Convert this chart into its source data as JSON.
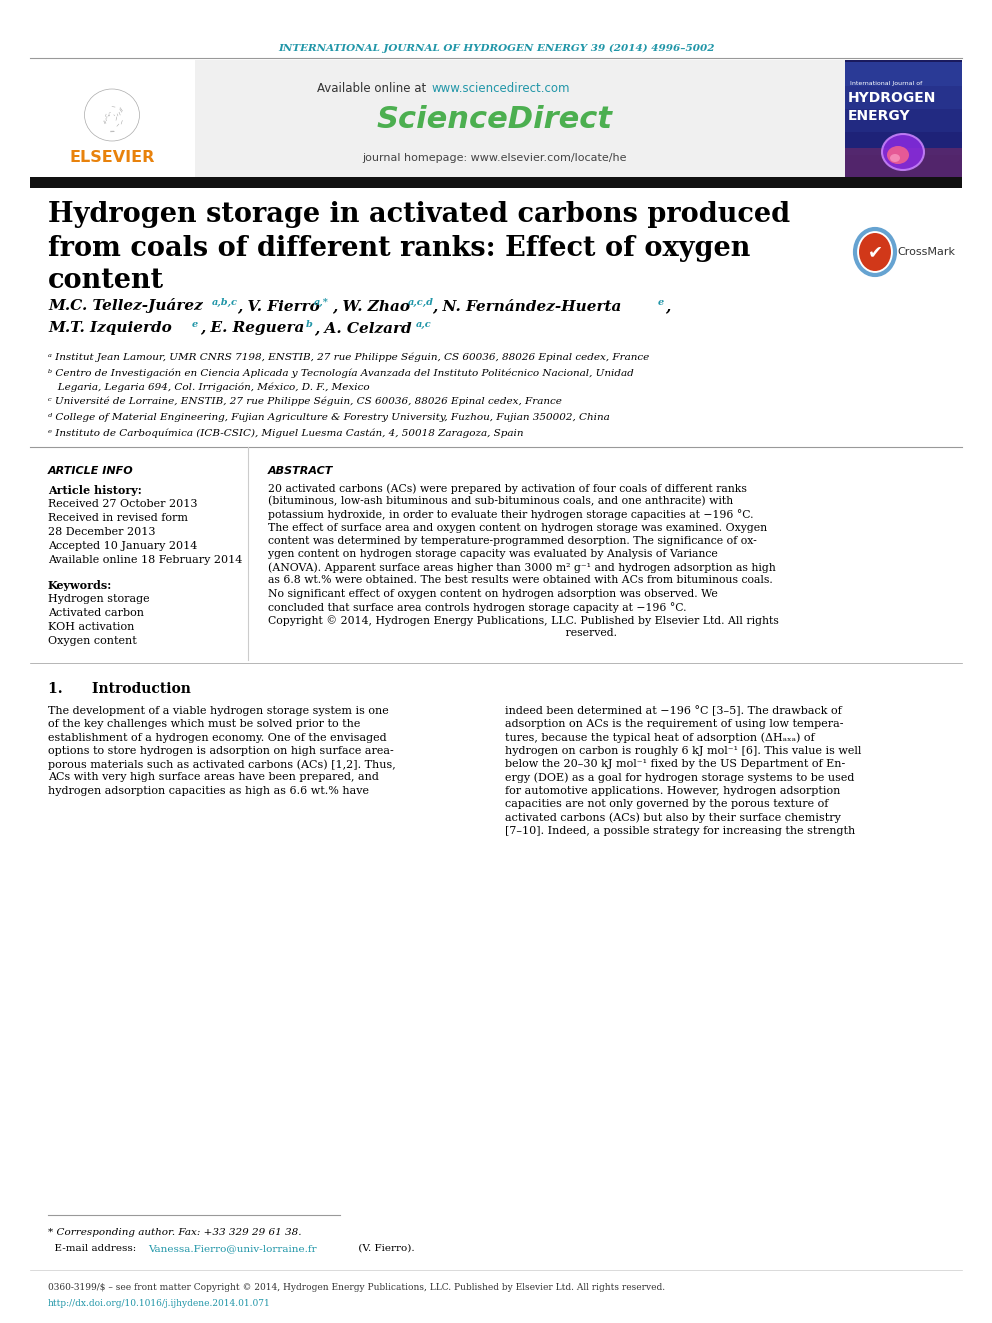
{
  "journal_header": "INTERNATIONAL JOURNAL OF HYDROGEN ENERGY 39 (2014) 4996–5002",
  "journal_header_color": "#2196a8",
  "sciencedirect_url_color": "#2196a8",
  "sciencedirect_logo_color": "#4caf50",
  "journal_homepage": "journal homepage: www.elsevier.com/locate/he",
  "affil_a": "ᵃ Institut Jean Lamour, UMR CNRS 7198, ENSTIB, 27 rue Philippe Séguin, CS 60036, 88026 Epinal cedex, France",
  "affil_b1": "ᵇ Centro de Investigación en Ciencia Aplicada y Tecnología Avanzada del Instituto Politécnico Nacional, Unidad",
  "affil_b2": "   Legaria, Legaria 694, Col. Irrigación, México, D. F., Mexico",
  "affil_c": "ᶜ Université de Lorraine, ENSTIB, 27 rue Philippe Séguin, CS 60036, 88026 Epinal cedex, France",
  "affil_d": "ᵈ College of Material Engineering, Fujian Agriculture & Forestry University, Fuzhou, Fujian 350002, China",
  "affil_e": "ᵉ Instituto de Carboquímica (ICB-CSIC), Miguel Luesma Castán, 4, 50018 Zaragoza, Spain",
  "article_info_title": "ARTICLE INFO",
  "article_history": "Article history:",
  "received": "Received 27 October 2013",
  "revised1": "Received in revised form",
  "revised2": "28 December 2013",
  "accepted": "Accepted 10 January 2014",
  "available": "Available online 18 February 2014",
  "keywords_title": "Keywords:",
  "keywords": [
    "Hydrogen storage",
    "Activated carbon",
    "KOH activation",
    "Oxygen content"
  ],
  "abstract_title": "ABSTRACT",
  "abstract_lines": [
    "20 activated carbons (ACs) were prepared by activation of four coals of different ranks",
    "(bituminous, low-ash bituminous and sub-bituminous coals, and one anthracite) with",
    "potassium hydroxide, in order to evaluate their hydrogen storage capacities at −196 °C.",
    "The effect of surface area and oxygen content on hydrogen storage was examined. Oxygen",
    "content was determined by temperature-programmed desorption. The significance of ox-",
    "ygen content on hydrogen storage capacity was evaluated by Analysis of Variance",
    "(ANOVA). Apparent surface areas higher than 3000 m² g⁻¹ and hydrogen adsorption as high",
    "as 6.8 wt.% were obtained. The best results were obtained with ACs from bituminous coals.",
    "No significant effect of oxygen content on hydrogen adsorption was observed. We",
    "concluded that surface area controls hydrogen storage capacity at −196 °C.",
    "Copyright © 2014, Hydrogen Energy Publications, LLC. Published by Elsevier Ltd. All rights",
    "                                                                                     reserved."
  ],
  "section1_title": "1.      Introduction",
  "intro_left_lines": [
    "The development of a viable hydrogen storage system is one",
    "of the key challenges which must be solved prior to the",
    "establishment of a hydrogen economy. One of the envisaged",
    "options to store hydrogen is adsorption on high surface area-",
    "porous materials such as activated carbons (ACs) [1,2]. Thus,",
    "ACs with very high surface areas have been prepared, and",
    "hydrogen adsorption capacities as high as 6.6 wt.% have"
  ],
  "intro_right_lines": [
    "indeed been determined at −196 °C [3–5]. The drawback of",
    "adsorption on ACs is the requirement of using low tempera-",
    "tures, because the typical heat of adsorption (ΔHₐₓₐ) of",
    "hydrogen on carbon is roughly 6 kJ mol⁻¹ [6]. This value is well",
    "below the 20–30 kJ mol⁻¹ fixed by the US Department of En-",
    "ergy (DOE) as a goal for hydrogen storage systems to be used",
    "for automotive applications. However, hydrogen adsorption",
    "capacities are not only governed by the porous texture of",
    "activated carbons (ACs) but also by their surface chemistry",
    "[7–10]. Indeed, a possible strategy for increasing the strength"
  ],
  "footnote_star": "* Corresponding author. Fax: +33 329 29 61 38.",
  "footnote_email": "Vanessa.Fierro@univ-lorraine.fr",
  "footnote_email_suffix": " (V. Fierro).",
  "issn_line": "0360-3199/$ – see front matter Copyright © 2014, Hydrogen Energy Publications, LLC. Published by Elsevier Ltd. All rights reserved.",
  "doi_line": "http://dx.doi.org/10.1016/j.ijhydene.2014.01.071",
  "bg_color": "#ffffff",
  "teal_color": "#2196a8",
  "green_color": "#4caf50",
  "orange_color": "#e8820c",
  "black_bar_color": "#111111"
}
